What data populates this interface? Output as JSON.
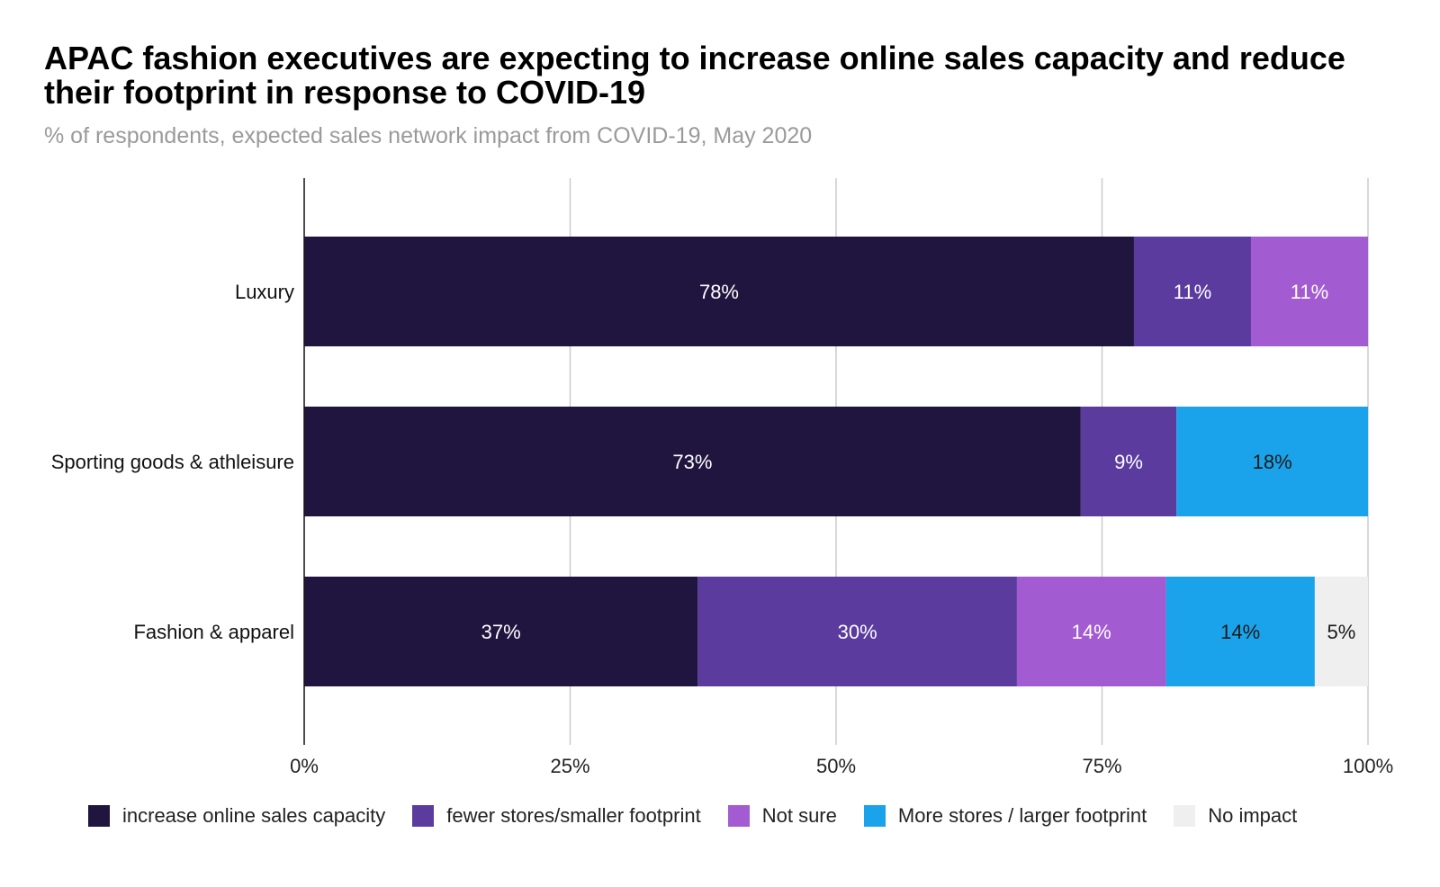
{
  "chart_data": {
    "type": "bar",
    "orientation": "horizontal",
    "stacked": true,
    "title": "APAC fashion executives are expecting to increase online sales capacity and reduce their footprint in response to COVID-19",
    "subtitle": "% of respondents, expected sales network impact from COVID-19, May 2020",
    "categories": [
      "Luxury",
      "Sporting goods & athleisure",
      "Fashion & apparel"
    ],
    "series": [
      {
        "name": "increase online sales capacity",
        "color": "#20153f",
        "label_color": "#ffffff",
        "values": [
          78,
          73,
          37
        ],
        "labels": [
          "78%",
          "73%",
          "37%"
        ]
      },
      {
        "name": "fewer stores/smaller footprint",
        "color": "#5b3b9e",
        "label_color": "#ffffff",
        "values": [
          11,
          9,
          30
        ],
        "labels": [
          "11%",
          "9%",
          "30%"
        ]
      },
      {
        "name": "Not sure",
        "color": "#a35bd1",
        "label_color": "#ffffff",
        "values": [
          11,
          0,
          14
        ],
        "labels": [
          "11%",
          "",
          "14%"
        ]
      },
      {
        "name": "More stores / larger footprint",
        "color": "#1aa3ea",
        "label_color": "#1a1a1a",
        "values": [
          0,
          18,
          14
        ],
        "labels": [
          "",
          "18%",
          "14%"
        ]
      },
      {
        "name": "No impact",
        "color": "#efefef",
        "label_color": "#1a1a1a",
        "values": [
          0,
          0,
          5
        ],
        "labels": [
          "",
          "",
          "5%"
        ]
      }
    ],
    "xlim": [
      0,
      100
    ],
    "x_ticks": [
      "0%",
      "25%",
      "50%",
      "75%",
      "100%"
    ],
    "x_tick_values": [
      0,
      25,
      50,
      75,
      100
    ],
    "grid": true,
    "legend_position": "bottom"
  }
}
